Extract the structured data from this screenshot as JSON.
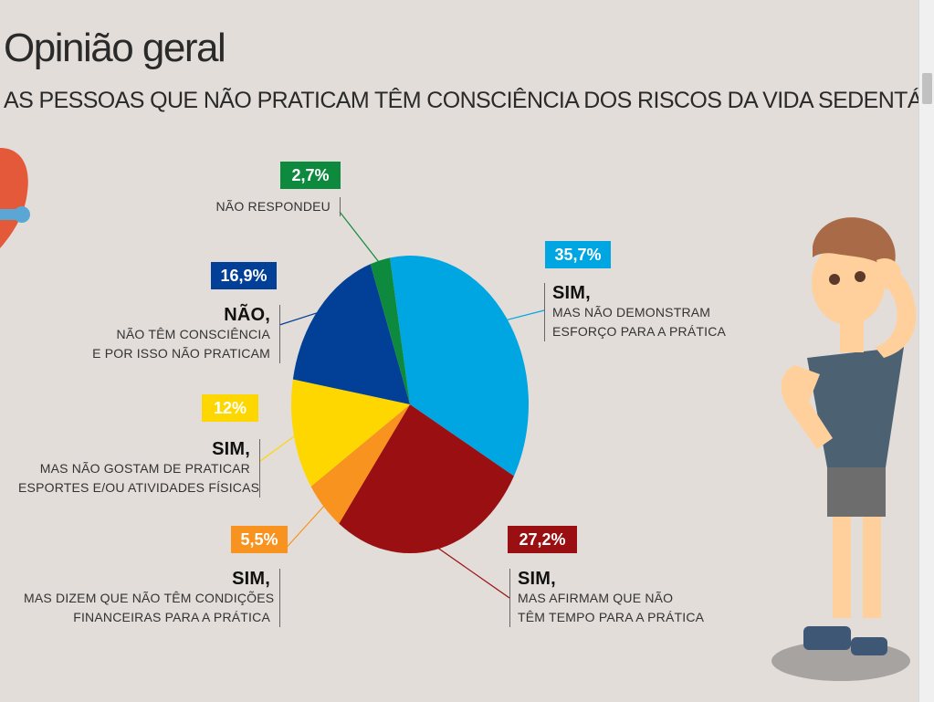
{
  "header": {
    "title": "Opinião geral",
    "subtitle": "AS PESSOAS QUE NÃO PRATICAM TÊM CONSCIÊNCIA DOS RISCOS DA VIDA SEDENTÁRIA?"
  },
  "chart_data": {
    "type": "pie",
    "title": "Opinião geral",
    "subtitle": "AS PESSOAS QUE NÃO PRATICAM TÊM CONSCIÊNCIA DOS RISCOS DA VIDA SEDENTÁRIA?",
    "slices": [
      {
        "value": 35.7,
        "label": "35,7%",
        "head": "SIM,",
        "lines": [
          "MAS NÃO DEMONSTRAM",
          "ESFORÇO PARA A PRÁTICA"
        ],
        "color": "#00a6e2"
      },
      {
        "value": 27.2,
        "label": "27,2%",
        "head": "SIM,",
        "lines": [
          "MAS AFIRMAM QUE NÃO",
          "TÊM TEMPO PARA A PRÁTICA"
        ],
        "color": "#9a0f12"
      },
      {
        "value": 5.5,
        "label": "5,5%",
        "head": "SIM,",
        "lines": [
          "MAS DIZEM QUE NÃO TÊM CONDIÇÕES",
          "FINANCEIRAS PARA A PRÁTICA"
        ],
        "color": "#f7931e"
      },
      {
        "value": 12,
        "label": "12%",
        "head": "SIM,",
        "lines": [
          "MAS NÃO GOSTAM DE PRATICAR",
          "ESPORTES E/OU ATIVIDADES FÍSICAS"
        ],
        "color": "#ffd700"
      },
      {
        "value": 16.9,
        "label": "16,9%",
        "head": "NÃO,",
        "lines": [
          "NÃO TÊM CONSCIÊNCIA",
          "E POR ISSO NÃO PRATICAM"
        ],
        "color": "#023f96"
      },
      {
        "value": 2.7,
        "label": "2,7%",
        "head": "",
        "lines": [
          "NÃO RESPONDEU"
        ],
        "color": "#0e8a3f"
      }
    ]
  }
}
